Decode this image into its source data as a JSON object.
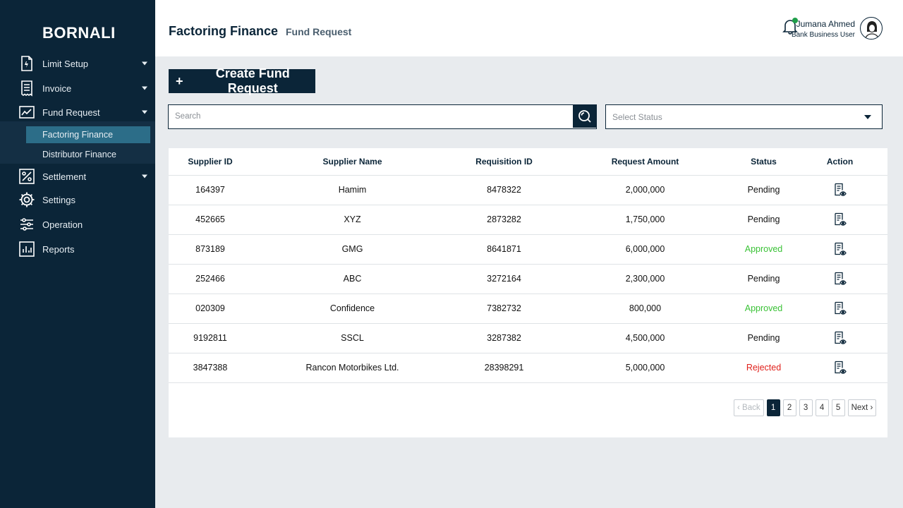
{
  "brand": "BORNALI",
  "sidebar": {
    "items": [
      {
        "label": "Limit Setup",
        "icon": "document-limit-icon"
      },
      {
        "label": "Invoice",
        "icon": "receipt-icon"
      },
      {
        "label": "Fund Request",
        "icon": "chart-trend-icon"
      },
      {
        "label": "Settlement",
        "icon": "percent-chart-icon"
      },
      {
        "label": "Settings",
        "icon": "gear-icon"
      },
      {
        "label": "Operation",
        "icon": "sliders-icon"
      },
      {
        "label": "Reports",
        "icon": "bar-chart-icon"
      }
    ],
    "submenu": [
      {
        "label": "Factoring Finance",
        "active": true
      },
      {
        "label": "Distributor Finance",
        "active": false
      }
    ]
  },
  "header": {
    "title": "Factoring Finance",
    "breadcrumb": "Fund Request",
    "user_name": "Jumana Ahmed",
    "user_role": "Bank Business User",
    "notification_dot_color": "#1f9e4a"
  },
  "toolbar": {
    "create_label": "Create Fund Request",
    "create_plus": "+",
    "search_placeholder": "Search",
    "status_placeholder": "Select Status"
  },
  "table": {
    "headers": [
      "Supplier ID",
      "Supplier Name",
      "Requisition ID",
      "Request Amount",
      "Status",
      "Action"
    ],
    "rows": [
      {
        "supplier_id": "164397",
        "supplier_name": "Hamim",
        "requisition_id": "8478322",
        "amount": "2,000,000",
        "status": "Pending"
      },
      {
        "supplier_id": "452665",
        "supplier_name": "XYZ",
        "requisition_id": "2873282",
        "amount": "1,750,000",
        "status": "Pending"
      },
      {
        "supplier_id": "873189",
        "supplier_name": "GMG",
        "requisition_id": "8641871",
        "amount": "6,000,000",
        "status": "Approved"
      },
      {
        "supplier_id": "252466",
        "supplier_name": "ABC",
        "requisition_id": "3272164",
        "amount": "2,300,000",
        "status": "Pending"
      },
      {
        "supplier_id": "020309",
        "supplier_name": "Confidence",
        "requisition_id": "7382732",
        "amount": "800,000",
        "status": "Approved"
      },
      {
        "supplier_id": "9192811",
        "supplier_name": "SSCL",
        "requisition_id": "3287382",
        "amount": "4,500,000",
        "status": "Pending"
      },
      {
        "supplier_id": "3847388",
        "supplier_name": "Rancon Motorbikes Ltd.",
        "requisition_id": "28398291",
        "amount": "5,000,000",
        "status": "Rejected"
      }
    ],
    "status_colors": {
      "Pending": "#111111",
      "Approved": "#3ac236",
      "Rejected": "#e0201b"
    }
  },
  "pagination": {
    "back": "Back",
    "next": "Next",
    "pages": [
      "1",
      "2",
      "3",
      "4",
      "5"
    ],
    "current": "1"
  }
}
